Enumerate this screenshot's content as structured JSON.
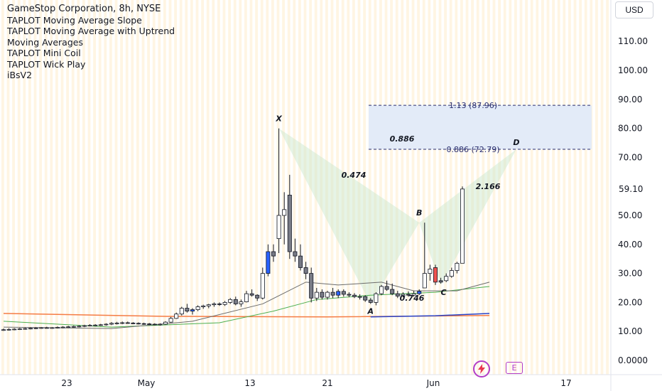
{
  "legend": {
    "title": "GameStop Corporation, 8h, NYSE",
    "indicators": [
      "TAPLOT Moving Average Slope",
      "TAPLOT Moving Average with Uptrend",
      "Moving Averages",
      "TAPLOT Mini Coil",
      "TAPLOT Wick Play",
      "iBsV2"
    ]
  },
  "currency_label": "USD",
  "last_price_label": "59.10",
  "icons": {
    "bolt": "lightning-bolt-icon",
    "events": "E"
  },
  "colors": {
    "up": "#ffffff",
    "down": "#787b86",
    "blue_candle": "#2962ff",
    "red_candle": "#ef5350",
    "harmonic_fill": "#c8e6c9",
    "fib_box": "#e3ebf8",
    "ma_orange": "#f57c45",
    "ma_green": "#4caf50",
    "ma_blue": "#2945c9",
    "ma_gray": "#6b6b6b"
  },
  "chart_data": {
    "type": "candlestick",
    "y_axis": {
      "ticks": [
        "110.00",
        "100.00",
        "90.00",
        "80.00",
        "70.00",
        "59.10",
        "50.00",
        "40.00",
        "30.00",
        "20.00",
        "10.00",
        "0.0000"
      ],
      "ylim": [
        -3,
        122
      ]
    },
    "x_axis": {
      "ticks": [
        "23",
        "May",
        "13",
        "21",
        "Jun",
        "17"
      ]
    },
    "candles": [
      {
        "o": 10.5,
        "h": 11.0,
        "l": 10.2,
        "c": 10.6
      },
      {
        "o": 10.6,
        "h": 11.1,
        "l": 10.3,
        "c": 10.7
      },
      {
        "o": 10.7,
        "h": 11.1,
        "l": 10.4,
        "c": 10.8
      },
      {
        "o": 10.8,
        "h": 11.2,
        "l": 10.5,
        "c": 10.9
      },
      {
        "o": 10.9,
        "h": 11.3,
        "l": 10.6,
        "c": 11.0
      },
      {
        "o": 11.0,
        "h": 11.4,
        "l": 10.7,
        "c": 11.1
      },
      {
        "o": 11.1,
        "h": 11.5,
        "l": 10.8,
        "c": 11.2
      },
      {
        "o": 11.2,
        "h": 11.5,
        "l": 10.9,
        "c": 11.3
      },
      {
        "o": 11.3,
        "h": 11.6,
        "l": 11.0,
        "c": 11.2
      },
      {
        "o": 11.2,
        "h": 11.5,
        "l": 10.9,
        "c": 11.3
      },
      {
        "o": 11.3,
        "h": 11.7,
        "l": 11.0,
        "c": 11.4
      },
      {
        "o": 11.4,
        "h": 11.8,
        "l": 11.1,
        "c": 11.5
      },
      {
        "o": 11.5,
        "h": 11.9,
        "l": 11.2,
        "c": 11.6
      },
      {
        "o": 11.6,
        "h": 12.0,
        "l": 11.3,
        "c": 11.7
      },
      {
        "o": 11.7,
        "h": 12.1,
        "l": 11.4,
        "c": 11.8
      },
      {
        "o": 11.8,
        "h": 12.3,
        "l": 11.5,
        "c": 12.0
      },
      {
        "o": 12.0,
        "h": 12.5,
        "l": 11.7,
        "c": 12.1
      },
      {
        "o": 12.1,
        "h": 12.5,
        "l": 11.8,
        "c": 12.2
      },
      {
        "o": 12.2,
        "h": 12.6,
        "l": 11.9,
        "c": 12.3
      },
      {
        "o": 12.3,
        "h": 12.8,
        "l": 12.0,
        "c": 12.5
      },
      {
        "o": 12.5,
        "h": 13.2,
        "l": 12.2,
        "c": 12.8
      },
      {
        "o": 12.8,
        "h": 13.3,
        "l": 12.4,
        "c": 12.9
      },
      {
        "o": 12.9,
        "h": 13.4,
        "l": 12.5,
        "c": 13.0
      },
      {
        "o": 13.0,
        "h": 13.4,
        "l": 12.7,
        "c": 12.9
      },
      {
        "o": 12.9,
        "h": 13.2,
        "l": 12.5,
        "c": 12.8
      },
      {
        "o": 12.8,
        "h": 13.1,
        "l": 12.4,
        "c": 12.7
      },
      {
        "o": 12.7,
        "h": 13.0,
        "l": 12.3,
        "c": 12.6
      },
      {
        "o": 12.6,
        "h": 12.9,
        "l": 12.2,
        "c": 12.5
      },
      {
        "o": 12.5,
        "h": 12.8,
        "l": 12.1,
        "c": 12.4
      },
      {
        "o": 12.4,
        "h": 12.8,
        "l": 12.0,
        "c": 12.5
      },
      {
        "o": 12.5,
        "h": 13.5,
        "l": 12.3,
        "c": 13.2
      },
      {
        "o": 13.2,
        "h": 15.0,
        "l": 13.0,
        "c": 14.5
      },
      {
        "o": 14.5,
        "h": 16.5,
        "l": 14.3,
        "c": 16.0
      },
      {
        "o": 16.0,
        "h": 18.5,
        "l": 15.5,
        "c": 18.0
      },
      {
        "o": 18.0,
        "h": 19.5,
        "l": 16.5,
        "c": 17.0
      },
      {
        "o": 17.0,
        "h": 18.0,
        "l": 15.8,
        "c": 17.5,
        "color": "blue"
      },
      {
        "o": 17.5,
        "h": 19.0,
        "l": 17.0,
        "c": 18.5
      },
      {
        "o": 18.5,
        "h": 19.2,
        "l": 17.8,
        "c": 18.8
      },
      {
        "o": 18.8,
        "h": 19.5,
        "l": 18.0,
        "c": 19.2
      },
      {
        "o": 19.2,
        "h": 20.0,
        "l": 18.5,
        "c": 19.5
      },
      {
        "o": 19.5,
        "h": 20.0,
        "l": 18.8,
        "c": 19.3
      },
      {
        "o": 19.3,
        "h": 20.5,
        "l": 18.8,
        "c": 20.0
      },
      {
        "o": 20.0,
        "h": 21.5,
        "l": 19.5,
        "c": 21.0
      },
      {
        "o": 21.0,
        "h": 22.0,
        "l": 19.0,
        "c": 19.5
      },
      {
        "o": 19.5,
        "h": 21.0,
        "l": 18.5,
        "c": 20.2
      },
      {
        "o": 20.2,
        "h": 24.0,
        "l": 20.0,
        "c": 23.0
      },
      {
        "o": 23.0,
        "h": 24.5,
        "l": 22.0,
        "c": 22.5
      },
      {
        "o": 22.5,
        "h": 22.8,
        "l": 20.5,
        "c": 21.5
      },
      {
        "o": 21.5,
        "h": 32.0,
        "l": 21.0,
        "c": 30.0
      },
      {
        "o": 30.0,
        "h": 40.0,
        "l": 29.0,
        "c": 37.5,
        "color": "blue"
      },
      {
        "o": 37.5,
        "h": 40.0,
        "l": 34.0,
        "c": 36.0
      },
      {
        "o": 42.0,
        "h": 80.0,
        "l": 37.0,
        "c": 50.0
      },
      {
        "o": 50.0,
        "h": 58.0,
        "l": 40.0,
        "c": 52.0
      },
      {
        "o": 57.0,
        "h": 64.0,
        "l": 35.0,
        "c": 37.5,
        "color": "down"
      },
      {
        "o": 37.5,
        "h": 42.0,
        "l": 34.0,
        "c": 36.0,
        "color": "down"
      },
      {
        "o": 36.0,
        "h": 40.0,
        "l": 31.0,
        "c": 32.0,
        "color": "down"
      },
      {
        "o": 32.0,
        "h": 34.0,
        "l": 28.0,
        "c": 30.0,
        "color": "down"
      },
      {
        "o": 30.0,
        "h": 32.0,
        "l": 20.0,
        "c": 21.5,
        "color": "down"
      },
      {
        "o": 21.5,
        "h": 25.0,
        "l": 20.5,
        "c": 23.5
      },
      {
        "o": 23.5,
        "h": 24.5,
        "l": 21.0,
        "c": 21.8,
        "color": "down"
      },
      {
        "o": 21.8,
        "h": 24.0,
        "l": 21.0,
        "c": 23.5
      },
      {
        "o": 23.5,
        "h": 25.0,
        "l": 21.5,
        "c": 22.5
      },
      {
        "o": 22.5,
        "h": 24.5,
        "l": 21.5,
        "c": 23.8,
        "color": "blue"
      },
      {
        "o": 23.8,
        "h": 24.5,
        "l": 22.0,
        "c": 22.8
      },
      {
        "o": 22.8,
        "h": 23.5,
        "l": 21.8,
        "c": 22.5
      },
      {
        "o": 22.5,
        "h": 23.2,
        "l": 21.5,
        "c": 22.0
      },
      {
        "o": 22.0,
        "h": 22.8,
        "l": 21.0,
        "c": 22.0
      },
      {
        "o": 22.0,
        "h": 22.5,
        "l": 20.2,
        "c": 20.8,
        "color": "down"
      },
      {
        "o": 20.8,
        "h": 21.5,
        "l": 19.5,
        "c": 20.0
      },
      {
        "o": 20.0,
        "h": 23.5,
        "l": 19.0,
        "c": 23.0
      },
      {
        "o": 23.0,
        "h": 26.0,
        "l": 22.5,
        "c": 25.5
      },
      {
        "o": 25.5,
        "h": 27.5,
        "l": 24.0,
        "c": 24.5
      },
      {
        "o": 24.5,
        "h": 26.5,
        "l": 22.5,
        "c": 23.0,
        "color": "down"
      },
      {
        "o": 23.0,
        "h": 24.0,
        "l": 21.5,
        "c": 22.2,
        "color": "down"
      },
      {
        "o": 22.2,
        "h": 23.5,
        "l": 21.8,
        "c": 22.8
      },
      {
        "o": 22.8,
        "h": 23.8,
        "l": 22.0,
        "c": 22.5
      },
      {
        "o": 22.5,
        "h": 24.0,
        "l": 22.0,
        "c": 23.0
      },
      {
        "o": 23.0,
        "h": 24.5,
        "l": 22.5,
        "c": 23.8,
        "color": "blue"
      },
      {
        "o": 25.0,
        "h": 47.5,
        "l": 25.0,
        "c": 30.0
      },
      {
        "o": 30.0,
        "h": 33.0,
        "l": 27.5,
        "c": 31.5
      },
      {
        "o": 32.0,
        "h": 33.0,
        "l": 26.0,
        "c": 27.0,
        "color": "red"
      },
      {
        "o": 27.0,
        "h": 28.5,
        "l": 26.5,
        "c": 27.5,
        "color": "down"
      },
      {
        "o": 27.5,
        "h": 30.0,
        "l": 27.0,
        "c": 29.0
      },
      {
        "o": 29.0,
        "h": 32.0,
        "l": 28.5,
        "c": 31.0
      },
      {
        "o": 31.0,
        "h": 34.0,
        "l": 30.0,
        "c": 33.5
      },
      {
        "o": 33.5,
        "h": 60.0,
        "l": 33.5,
        "c": 59.1
      }
    ],
    "harmonic": {
      "name": "XABCD",
      "points": [
        {
          "label": "X",
          "bar": 51,
          "price": 80.0
        },
        {
          "label": "A",
          "bar": 68,
          "price": 19.5
        },
        {
          "label": "B",
          "bar": 77,
          "price": 47.5
        },
        {
          "label": "C",
          "bar": 81,
          "price": 26.0
        },
        {
          "label": "D",
          "bar": 95,
          "price": 72.79
        }
      ],
      "ratios": [
        "0.474",
        "0.886",
        "2.166",
        "0.746"
      ]
    },
    "fib_levels": [
      {
        "label": "1.13 (87.96)",
        "price": 87.96
      },
      {
        "label": "0.886 (72.79)",
        "price": 72.79
      }
    ],
    "moving_averages": [
      {
        "color": "orange",
        "points": [
          [
            0,
            16.2
          ],
          [
            30,
            15.2
          ],
          [
            60,
            15.0
          ],
          [
            90,
            15.5
          ]
        ]
      },
      {
        "color": "blue",
        "points": [
          [
            68,
            15.0
          ],
          [
            80,
            15.4
          ],
          [
            90,
            16.2
          ]
        ]
      },
      {
        "color": "green",
        "points": [
          [
            0,
            13.5
          ],
          [
            20,
            11.5
          ],
          [
            40,
            13.0
          ],
          [
            50,
            17.0
          ],
          [
            58,
            21.0
          ],
          [
            68,
            22.5
          ],
          [
            80,
            23.5
          ],
          [
            90,
            25.5
          ]
        ]
      },
      {
        "color": "gray",
        "points": [
          [
            0,
            11.5
          ],
          [
            20,
            11.0
          ],
          [
            35,
            13.5
          ],
          [
            48,
            19.5
          ],
          [
            56,
            27.0
          ],
          [
            62,
            26.0
          ],
          [
            70,
            27.0
          ],
          [
            76,
            24.0
          ],
          [
            84,
            24.0
          ],
          [
            90,
            27.0
          ]
        ]
      }
    ]
  }
}
